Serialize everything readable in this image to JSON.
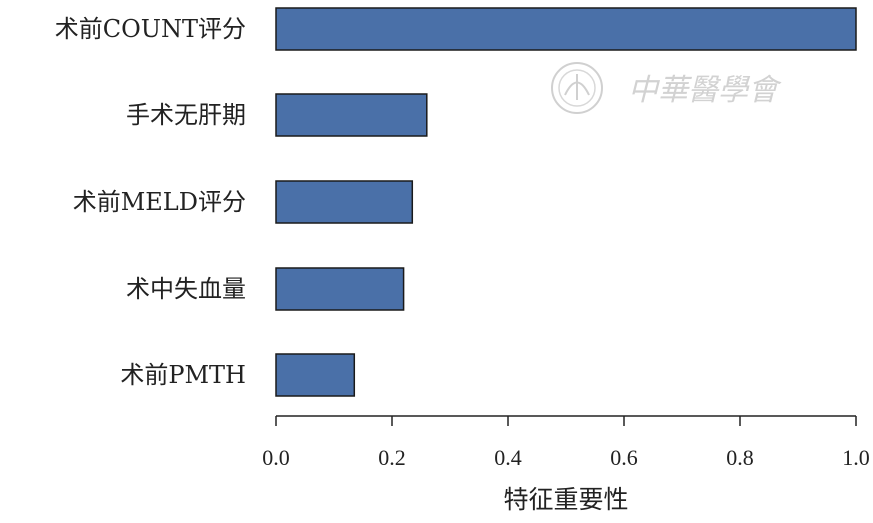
{
  "chart_data": {
    "type": "bar",
    "orientation": "horizontal",
    "categories": [
      "术前COUNT评分",
      "手术无肝期",
      "术前MELD评分",
      "术中失血量",
      "术前PMTH"
    ],
    "values": [
      1.0,
      0.26,
      0.235,
      0.22,
      0.135
    ],
    "xlabel": "特征重要性",
    "ylabel": "",
    "xlim": [
      0.0,
      1.0
    ],
    "xticks": [
      "0.0",
      "0.2",
      "0.4",
      "0.6",
      "0.8",
      "1.0"
    ],
    "grid": false,
    "legend": "none",
    "bar_color": "#4a70a8",
    "bar_edge_color": "#1a1a1a"
  },
  "watermark": {
    "text": "中華醫學會"
  }
}
